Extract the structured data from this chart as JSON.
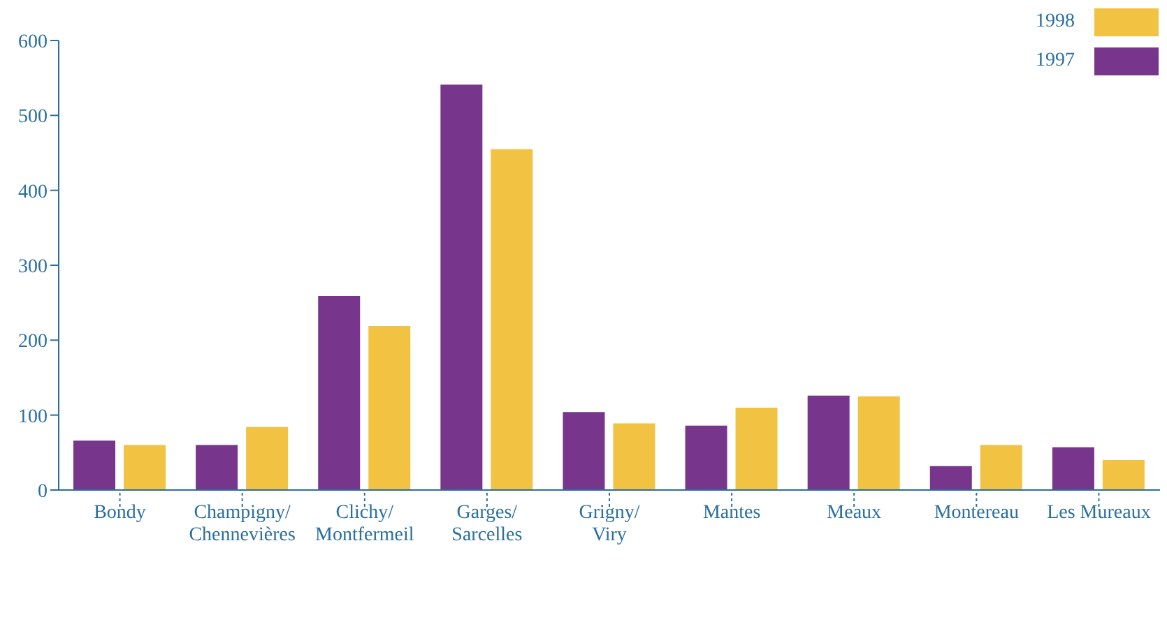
{
  "chart_data": {
    "type": "bar",
    "categories": [
      "Bondy",
      "Champigny/Chennevières",
      "Clichy/Montfermeil",
      "Garges/Sarcelles",
      "Grigny/Viry",
      "Mantes",
      "Meaux",
      "Montereau",
      "Les Mureaux"
    ],
    "series": [
      {
        "name": "1997",
        "color": "#77368b",
        "values": [
          66,
          60,
          259,
          541,
          104,
          86,
          126,
          32,
          57
        ]
      },
      {
        "name": "1998",
        "color": "#f2c342",
        "values": [
          60,
          84,
          219,
          455,
          89,
          110,
          125,
          60,
          40
        ]
      }
    ],
    "ylim": [
      0,
      600
    ],
    "yticks": [
      0,
      100,
      200,
      300,
      400,
      500,
      600
    ],
    "legend": "top right"
  }
}
